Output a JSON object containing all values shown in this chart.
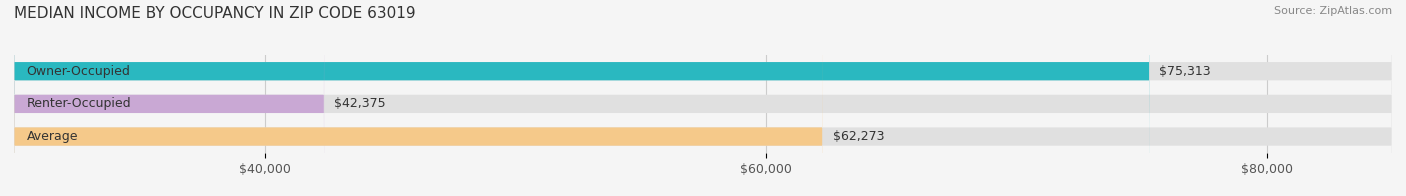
{
  "title": "MEDIAN INCOME BY OCCUPANCY IN ZIP CODE 63019",
  "source": "Source: ZipAtlas.com",
  "categories": [
    "Owner-Occupied",
    "Renter-Occupied",
    "Average"
  ],
  "values": [
    75313,
    42375,
    62273
  ],
  "labels": [
    "$75,313",
    "$42,375",
    "$62,273"
  ],
  "bar_colors": [
    "#2ab8c0",
    "#c9a8d4",
    "#f5c98a"
  ],
  "bar_bg_colors": [
    "#e8e8e8",
    "#e8e8e8",
    "#e8e8e8"
  ],
  "xlim": [
    30000,
    85000
  ],
  "xticks": [
    40000,
    60000,
    80000
  ],
  "xtick_labels": [
    "$40,000",
    "$60,000",
    "$80,000"
  ],
  "title_fontsize": 11,
  "source_fontsize": 8,
  "label_fontsize": 9,
  "category_fontsize": 9,
  "bar_height": 0.55,
  "figsize": [
    14.06,
    1.96
  ],
  "dpi": 100
}
